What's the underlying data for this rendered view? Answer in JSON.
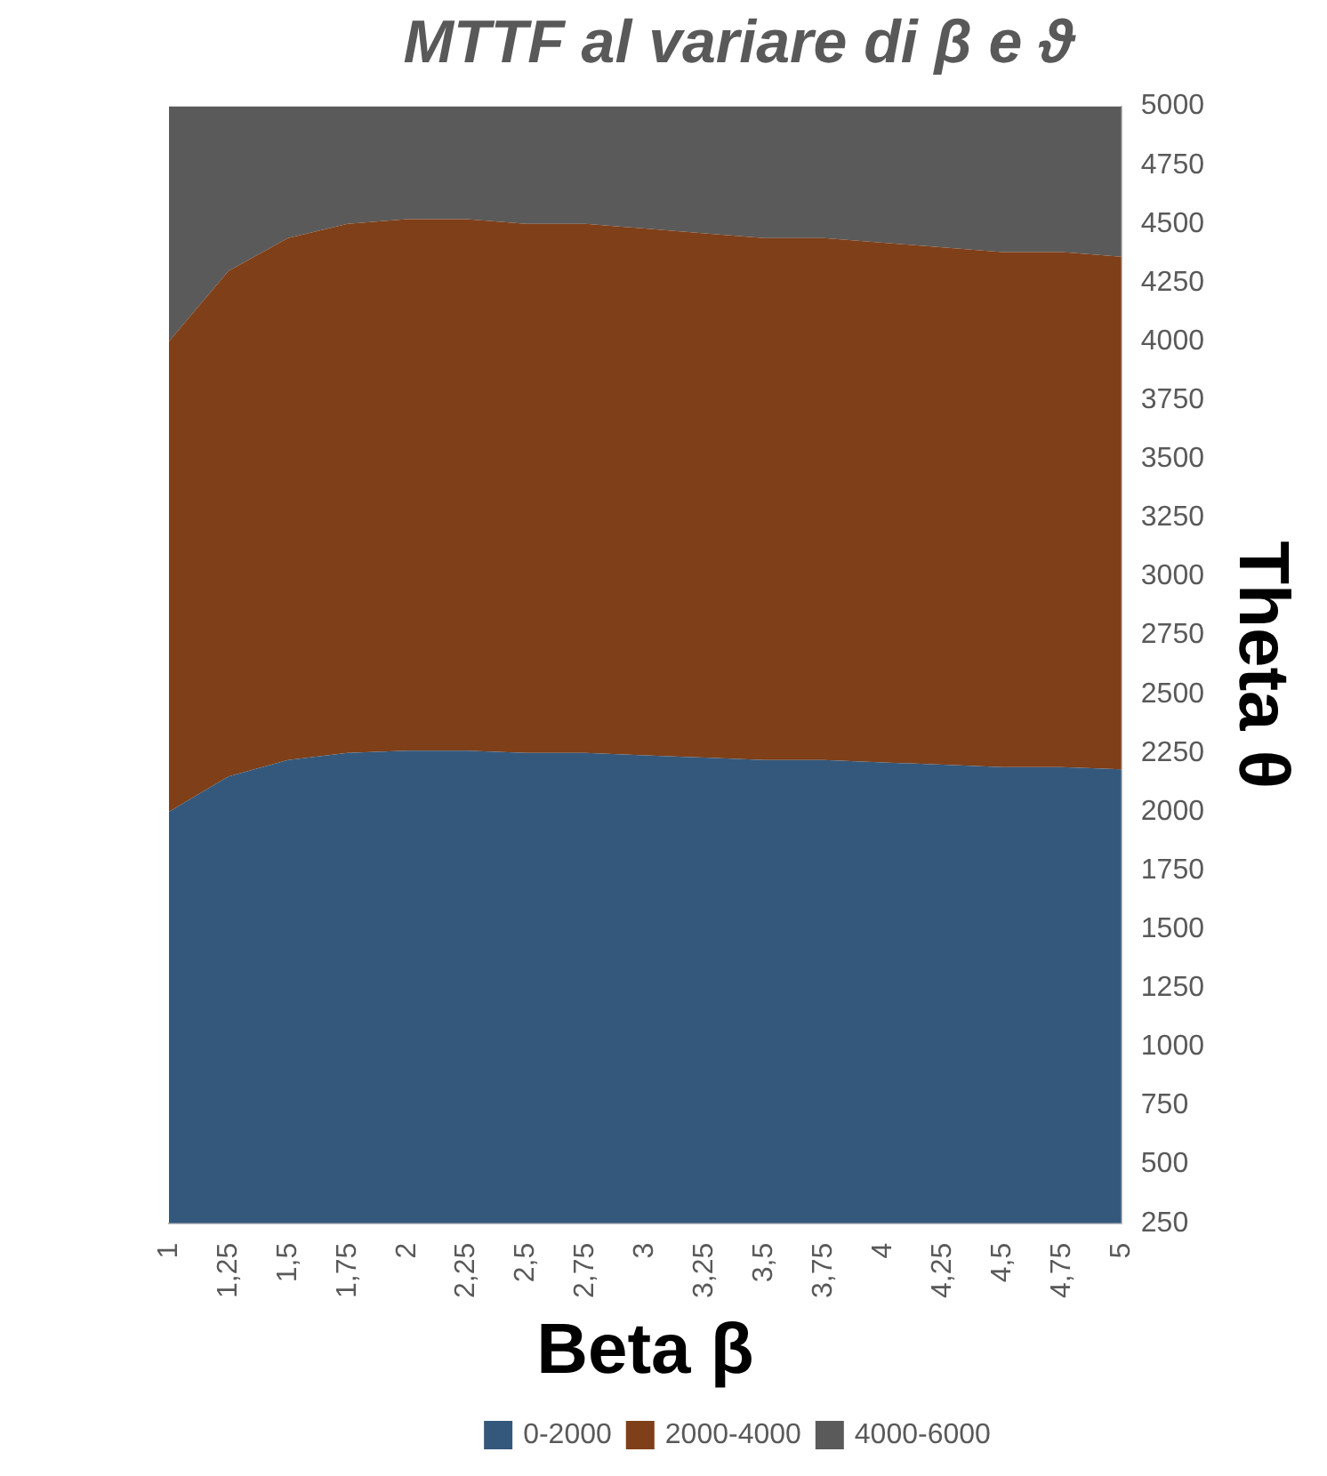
{
  "chart_data": {
    "type": "area",
    "stacked": true,
    "title": "MTTF al variare di β e ϑ",
    "xlabel": "Beta β",
    "ylabel": "Theta θ",
    "categories": [
      "1",
      "1,25",
      "1,5",
      "1,75",
      "2",
      "2,25",
      "2,5",
      "2,75",
      "3",
      "3,25",
      "3,5",
      "3,75",
      "4",
      "4,25",
      "4,5",
      "4,75",
      "5"
    ],
    "series": [
      {
        "name": "0-2000",
        "color": "#34587c",
        "values": [
          2000,
          2150,
          2220,
          2250,
          2260,
          2260,
          2250,
          2250,
          2240,
          2230,
          2220,
          2220,
          2210,
          2200,
          2190,
          2190,
          2180
        ]
      },
      {
        "name": "2000-4000",
        "color": "#7f3f18",
        "values": [
          2000,
          2150,
          2220,
          2250,
          2260,
          2260,
          2250,
          2250,
          2240,
          2230,
          2220,
          2220,
          2210,
          2200,
          2190,
          2190,
          2180
        ]
      },
      {
        "name": "4000-6000",
        "color": "#5a5a5a",
        "values": [
          1000,
          700,
          560,
          500,
          480,
          480,
          500,
          500,
          520,
          540,
          560,
          560,
          580,
          600,
          620,
          620,
          640
        ]
      }
    ],
    "ylim": [
      250,
      5000
    ],
    "yticks": [
      250,
      500,
      750,
      1000,
      1250,
      1500,
      1750,
      2000,
      2250,
      2500,
      2750,
      3000,
      3250,
      3500,
      3750,
      4000,
      4250,
      4500,
      4750,
      5000
    ],
    "grid": false,
    "legend": "bottom"
  }
}
